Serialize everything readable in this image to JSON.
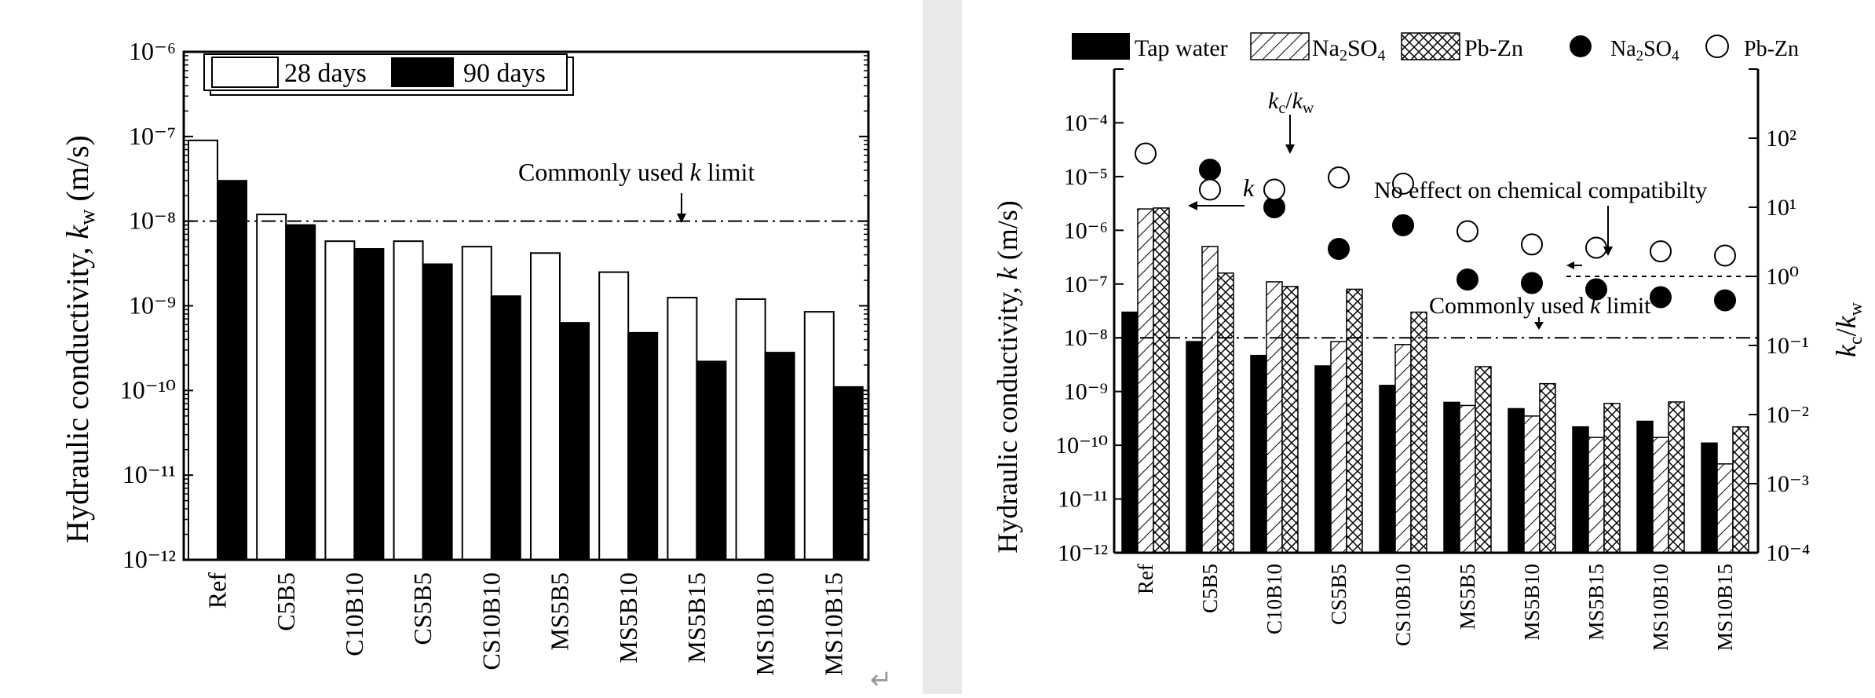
{
  "charts": {
    "chart_data": [
      {
        "type": "bar",
        "categories": [
          "Ref",
          "C5B5",
          "C10B10",
          "CS5B5",
          "CS10B10",
          "MS5B5",
          "MS5B10",
          "MS5B15",
          "MS10B10",
          "MS10B15"
        ],
        "series": [
          {
            "name": "28 days",
            "color": "#ffffff",
            "values": [
              9e-08,
              1.2e-08,
              5.8e-09,
              5.8e-09,
              5e-09,
              4.2e-09,
              2.5e-09,
              1.25e-09,
              1.2e-09,
              8.5e-10
            ]
          },
          {
            "name": "90 days",
            "color": "#000000",
            "values": [
              3e-08,
              9e-09,
              4.7e-09,
              3.1e-09,
              1.3e-09,
              6.3e-10,
              4.8e-10,
              2.2e-10,
              2.8e-10,
              1.1e-10
            ]
          }
        ],
        "ylabel": "Hydraulic conductivity, k_w (m/s)",
        "ylabel_main": "Hydraulic conductivity, ",
        "ylabel_var": "k",
        "ylabel_sub": "w",
        "ylabel_unit": " (m/s)",
        "yscale": "log",
        "ylim": [
          1e-12,
          1e-06
        ],
        "yticks": [
          "10⁻¹²",
          "10⁻¹¹",
          "10⁻¹⁰",
          "10⁻⁹",
          "10⁻⁸",
          "10⁻⁷",
          "10⁻⁶"
        ],
        "legend_labels": [
          "28 days",
          "90 days"
        ],
        "reference_line": {
          "value": 1e-08,
          "label_pre": "Commonly used ",
          "label_var": "k",
          "label_post": " limit"
        }
      },
      {
        "type": "bar",
        "categories": [
          "Ref",
          "C5B5",
          "C10B10",
          "CS5B5",
          "CS10B10",
          "MS5B5",
          "MS5B10",
          "MS5B15",
          "MS10B10",
          "MS10B15"
        ],
        "bar_series": [
          {
            "name": "Tap water",
            "pattern": "solid",
            "values": [
              3e-08,
              8.5e-09,
              4.7e-09,
              3e-09,
              1.3e-09,
              6.3e-10,
              4.8e-10,
              2.2e-10,
              2.8e-10,
              1.1e-10
            ]
          },
          {
            "name": "Na2SO4",
            "pattern": "hatch",
            "values": [
              2.5e-06,
              5e-07,
              1.1e-07,
              8.5e-09,
              7.5e-09,
              5.5e-10,
              3.5e-10,
              1.4e-10,
              1.4e-10,
              4.5e-11
            ]
          },
          {
            "name": "Pb-Zn",
            "pattern": "crosshatch",
            "values": [
              2.6e-06,
              1.6e-07,
              9e-08,
              8e-08,
              3e-08,
              2.9e-09,
              1.4e-09,
              6e-10,
              6.4e-10,
              2.2e-10
            ]
          }
        ],
        "scatter_series": [
          {
            "name": "Na2SO4",
            "marker": "filled-circle",
            "values": [
              null,
              35,
              10,
              2.5,
              5.5,
              0.9,
              0.8,
              0.65,
              0.5,
              0.45
            ]
          },
          {
            "name": "Pb-Zn",
            "marker": "open-circle",
            "values": [
              60,
              18,
              18,
              27,
              22,
              4.5,
              2.9,
              2.6,
              2.3,
              2.0
            ]
          }
        ],
        "legend": {
          "tap": "Tap water",
          "na_main": "Na",
          "na_sub1": "2",
          "na_mid": "SO",
          "na_sub2": "4",
          "pbzn": "Pb-Zn"
        },
        "ylabel_left": "Hydraulic conductivity, k (m/s)",
        "ylabel_left_main": "Hydraulic conductivity, ",
        "ylabel_left_var": "k",
        "ylabel_left_unit": " (m/s)",
        "ylim_left": [
          1e-12,
          0.001
        ],
        "yticks_left": [
          "10⁻¹²",
          "10⁻¹¹",
          "10⁻¹⁰",
          "10⁻⁹",
          "10⁻⁸",
          "10⁻⁷",
          "10⁻⁶",
          "10⁻⁵",
          "10⁻⁴"
        ],
        "ylabel_right": "k_c/k_w",
        "ylim_right": [
          0.0001,
          1000.0
        ],
        "yticks_right": [
          "10⁻⁴",
          "10⁻³",
          "10⁻²",
          "10⁻¹",
          "10⁰",
          "10¹",
          "10²"
        ],
        "yscale": "log",
        "annotations": {
          "kc_kw_var1": "k",
          "kc_kw_sub1": "c",
          "kc_kw_slash": "/",
          "kc_kw_var2": "k",
          "kc_kw_sub2": "w",
          "k_label": "k",
          "no_effect": "No effect on chemical compatibilty",
          "limit_pre": "Commonly used ",
          "limit_var": "k",
          "limit_post": "  limit"
        },
        "reference_line_left": 1e-08,
        "reference_line_right": 1.0
      }
    ]
  }
}
